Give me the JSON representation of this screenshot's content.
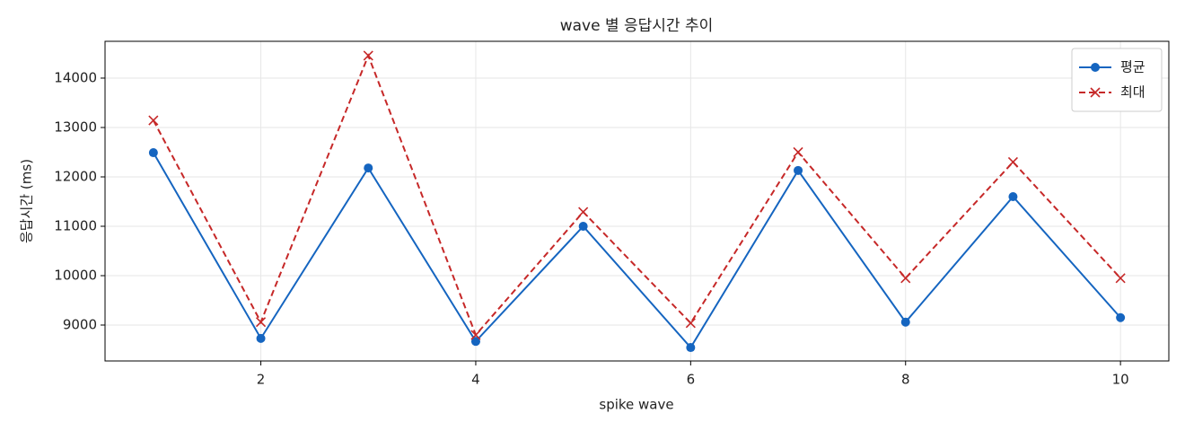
{
  "chart_data": {
    "type": "line",
    "title": "wave 별 응답시간 추이",
    "x_label": "spike wave",
    "y_label": "응답시간 (ms)",
    "x": [
      1,
      2,
      3,
      4,
      5,
      6,
      7,
      8,
      9,
      10
    ],
    "series": [
      {
        "name": "평균",
        "color": "#1565c0",
        "marker": "circle",
        "linestyle": "solid",
        "values": [
          12490,
          8730,
          12180,
          8670,
          11000,
          8545,
          12130,
          9060,
          11600,
          9150
        ]
      },
      {
        "name": "최대",
        "color": "#c62828",
        "marker": "x",
        "linestyle": "dashed",
        "values": [
          13145,
          9060,
          14455,
          8800,
          11290,
          9040,
          12500,
          9950,
          12300,
          9950
        ]
      }
    ],
    "xlim": [
      0.55,
      10.45
    ],
    "xticks": [
      2,
      4,
      6,
      8,
      10
    ],
    "ylim": [
      8273,
      14745
    ],
    "yticks": [
      9000,
      10000,
      11000,
      12000,
      13000,
      14000
    ],
    "grid": true,
    "legend": "upper right"
  }
}
